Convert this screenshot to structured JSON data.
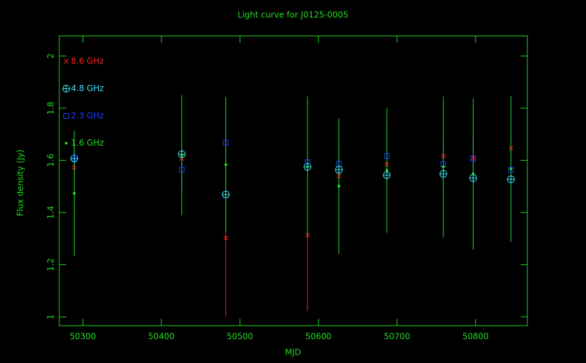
{
  "chart_data": {
    "type": "scatter",
    "title": "Light curve for J0125-0005",
    "x_label": "MJD",
    "y_label": "Flux density (Jy)",
    "x": [
      50289,
      50426,
      50482,
      50586,
      50626,
      50687,
      50759,
      50797,
      50845
    ],
    "xlim": [
      50270,
      50866
    ],
    "ylim": [
      0.966,
      2.077
    ],
    "xticks": [
      50300,
      50400,
      50500,
      50600,
      50700,
      50800
    ],
    "yticks": [
      1,
      1.2,
      1.4,
      1.6,
      1.8,
      2
    ],
    "legend": "top-left",
    "axis_color": "#22dd22",
    "series": [
      {
        "name": "8.6 GHz",
        "color": "#ff2020",
        "marker": "x",
        "values": [
          1.572,
          1.607,
          1.302,
          1.313,
          1.54,
          1.585,
          1.617,
          1.609,
          1.646
        ],
        "errors": [
          0.02,
          0.03,
          0.3,
          0.29,
          0.04,
          0.04,
          0.05,
          0.09,
          0.05
        ]
      },
      {
        "name": "4.8 GHz",
        "color": "#40e0f0",
        "marker": "circle-plus",
        "values": [
          1.607,
          1.623,
          1.469,
          1.575,
          1.564,
          1.543,
          1.548,
          1.532,
          1.527
        ],
        "errors": [
          0.02,
          0.02,
          0.02,
          0.02,
          0.02,
          0.02,
          0.02,
          0.02,
          0.02
        ]
      },
      {
        "name": "2.3 GHz",
        "color": "#2040ff",
        "marker": "square",
        "values": [
          1.609,
          1.564,
          1.668,
          1.593,
          1.588,
          1.617,
          1.585,
          1.607,
          1.564
        ],
        "errors": [
          0.07,
          0.08,
          0.11,
          0.07,
          0.08,
          0.11,
          0.09,
          0.08,
          0.12
        ]
      },
      {
        "name": "1.6 GHz",
        "color": "#22dd22",
        "marker": "dot",
        "values": [
          1.474,
          1.62,
          1.583,
          1.575,
          1.501,
          1.562,
          1.575,
          1.548,
          1.567
        ],
        "errors": [
          0.24,
          0.23,
          0.26,
          0.27,
          0.26,
          0.24,
          0.27,
          0.29,
          0.28
        ]
      }
    ]
  }
}
